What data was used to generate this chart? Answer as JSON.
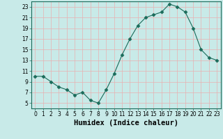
{
  "x": [
    0,
    1,
    2,
    3,
    4,
    5,
    6,
    7,
    8,
    9,
    10,
    11,
    12,
    13,
    14,
    15,
    16,
    17,
    18,
    19,
    20,
    21,
    22,
    23
  ],
  "y": [
    10,
    10,
    9,
    8,
    7.5,
    6.5,
    7,
    5.5,
    5,
    7.5,
    10.5,
    14,
    17,
    19.5,
    21,
    21.5,
    22,
    23.5,
    23,
    22,
    19,
    15,
    13.5,
    13
  ],
  "line_color": "#1a6b5a",
  "marker": "D",
  "marker_size": 2.5,
  "bg_color": "#c8eae8",
  "grid_color": "#e8b0b0",
  "xlabel": "Humidex (Indice chaleur)",
  "xlim": [
    -0.5,
    23.5
  ],
  "ylim": [
    4,
    24
  ],
  "yticks": [
    5,
    7,
    9,
    11,
    13,
    15,
    17,
    19,
    21,
    23
  ],
  "xticks": [
    0,
    1,
    2,
    3,
    4,
    5,
    6,
    7,
    8,
    9,
    10,
    11,
    12,
    13,
    14,
    15,
    16,
    17,
    18,
    19,
    20,
    21,
    22,
    23
  ],
  "tick_fontsize": 5.5,
  "xlabel_fontsize": 7.5
}
